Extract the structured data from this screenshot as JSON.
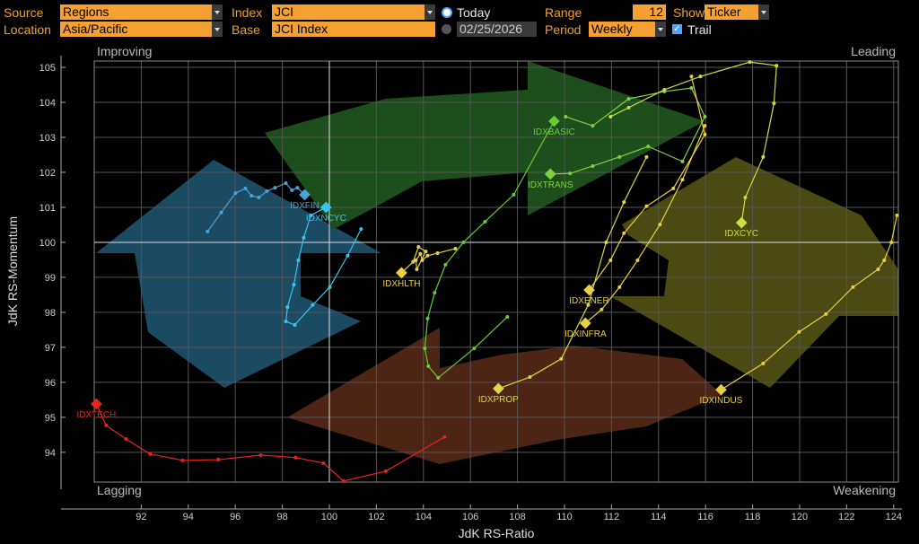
{
  "controls": {
    "source_label": "Source",
    "source": "Regions",
    "index_label": "Index",
    "index": "JCI",
    "today": "Today",
    "range_label": "Range",
    "range": "12",
    "show_label": "Show",
    "show": "Ticker",
    "location_label": "Location",
    "location": "Asia/Pacific",
    "base_label": "Base",
    "base": "JCI Index",
    "date": "02/25/2026",
    "period_label": "Period",
    "period": "Weekly",
    "trail": "Trail"
  },
  "chart_data": {
    "type": "rrg",
    "x_label": "JdK RS-Ratio",
    "y_label": "JdK RS-Momentum",
    "quadrants": {
      "top_left": "Improving",
      "top_right": "Leading",
      "bottom_left": "Lagging",
      "bottom_right": "Weakening"
    },
    "xlim": [
      90,
      124.2
    ],
    "ylim": [
      93.15,
      105.18
    ],
    "xticks": [
      92,
      94,
      96,
      98,
      100,
      102,
      104,
      106,
      108,
      110,
      112,
      114,
      116,
      118,
      120,
      122,
      124
    ],
    "yticks": [
      94,
      95,
      96,
      97,
      98,
      99,
      100,
      101,
      102,
      103,
      104,
      105
    ],
    "center": [
      100,
      100
    ],
    "grid": true,
    "series": [
      {
        "name": "IDXTECH",
        "color": "#e8241e",
        "x": [
          104.9,
          102.4,
          100.6,
          99.75,
          98.56,
          97.08,
          95.28,
          93.76,
          92.38,
          91.35,
          90.51,
          90.09
        ],
        "y": [
          94.44,
          93.46,
          93.18,
          93.69,
          93.85,
          93.92,
          93.79,
          93.77,
          93.95,
          94.38,
          94.77,
          95.38
        ]
      },
      {
        "name": "IDXFIN",
        "color": "#4aa3d8",
        "x": [
          94.82,
          95.4,
          96.01,
          96.43,
          96.69,
          97.0,
          97.34,
          97.69,
          98.15,
          98.41,
          98.64,
          98.95
        ],
        "y": [
          100.31,
          100.85,
          101.41,
          101.54,
          101.33,
          101.28,
          101.46,
          101.56,
          101.69,
          101.49,
          101.56,
          101.36
        ]
      },
      {
        "name": "IDXNCYC",
        "color": "#39c4f0",
        "x": [
          101.35,
          100.78,
          100.02,
          99.29,
          98.53,
          98.15,
          98.22,
          98.49,
          98.68,
          98.91,
          99.21,
          99.86
        ],
        "y": [
          100.38,
          99.62,
          98.72,
          98.21,
          97.64,
          97.74,
          98.15,
          98.79,
          99.49,
          100.13,
          100.77,
          101.0
        ]
      },
      {
        "name": "IDXHLTH",
        "color": "#e8d040",
        "x": [
          105.36,
          104.6,
          104.18,
          103.95,
          103.87,
          103.68,
          103.72,
          104.1,
          103.79,
          103.56,
          103.07
        ],
        "y": [
          99.82,
          99.69,
          99.62,
          99.49,
          99.67,
          99.49,
          99.23,
          99.74,
          99.87,
          99.44,
          99.13
        ]
      },
      {
        "name": "IDXBASIC",
        "color": "#66cc33",
        "x": [
          107.57,
          106.16,
          104.63,
          104.21,
          104.06,
          104.18,
          104.48,
          104.94,
          105.7,
          106.62,
          107.84,
          109.56
        ],
        "y": [
          97.87,
          96.97,
          96.13,
          96.46,
          96.97,
          97.82,
          98.56,
          99.36,
          100.0,
          100.59,
          101.36,
          103.46
        ]
      },
      {
        "name": "IDXTRANS",
        "color": "#7fd040",
        "x": [
          110.05,
          111.2,
          112.73,
          114.25,
          115.4,
          115.97,
          115.02,
          113.56,
          112.34,
          111.2,
          110.24,
          109.4
        ],
        "y": [
          103.59,
          103.33,
          104.1,
          104.31,
          104.41,
          103.59,
          102.31,
          102.74,
          102.44,
          102.18,
          101.97,
          101.95
        ]
      },
      {
        "name": "IDXCYC",
        "color": "#c8e040",
        "x": [
          111.96,
          112.73,
          114.25,
          115.78,
          117.88,
          119.02,
          118.91,
          118.45,
          117.69,
          117.53
        ],
        "y": [
          103.59,
          103.85,
          104.36,
          104.74,
          105.15,
          105.05,
          103.97,
          102.44,
          101.28,
          100.56
        ]
      },
      {
        "name": "IDXENER",
        "color": "#e8d040",
        "x": [
          115.4,
          115.97,
          114.63,
          113.49,
          112.53,
          111.96,
          111.05
        ],
        "y": [
          104.74,
          103.08,
          101.54,
          101.03,
          100.26,
          99.49,
          98.64
        ]
      },
      {
        "name": "IDXINFRA",
        "color": "#e8d040",
        "x": [
          115.97,
          115.02,
          114.06,
          113.11,
          112.34,
          111.58,
          110.89
        ],
        "y": [
          103.33,
          101.79,
          100.51,
          99.49,
          98.72,
          98.08,
          97.69
        ]
      },
      {
        "name": "IDXPROP",
        "color": "#d8d848",
        "x": [
          113.49,
          112.53,
          111.77,
          111.01,
          109.86,
          108.53,
          107.19
        ],
        "y": [
          102.44,
          101.15,
          100.0,
          98.21,
          96.67,
          96.15,
          95.82
        ]
      },
      {
        "name": "IDXINDUS",
        "color": "#e8d040",
        "x": [
          124.14,
          123.9,
          123.6,
          123.34,
          122.27,
          121.12,
          119.98,
          118.45,
          116.66
        ],
        "y": [
          100.77,
          100.0,
          99.49,
          99.23,
          98.72,
          97.95,
          97.44,
          96.54,
          95.79
        ]
      }
    ]
  }
}
